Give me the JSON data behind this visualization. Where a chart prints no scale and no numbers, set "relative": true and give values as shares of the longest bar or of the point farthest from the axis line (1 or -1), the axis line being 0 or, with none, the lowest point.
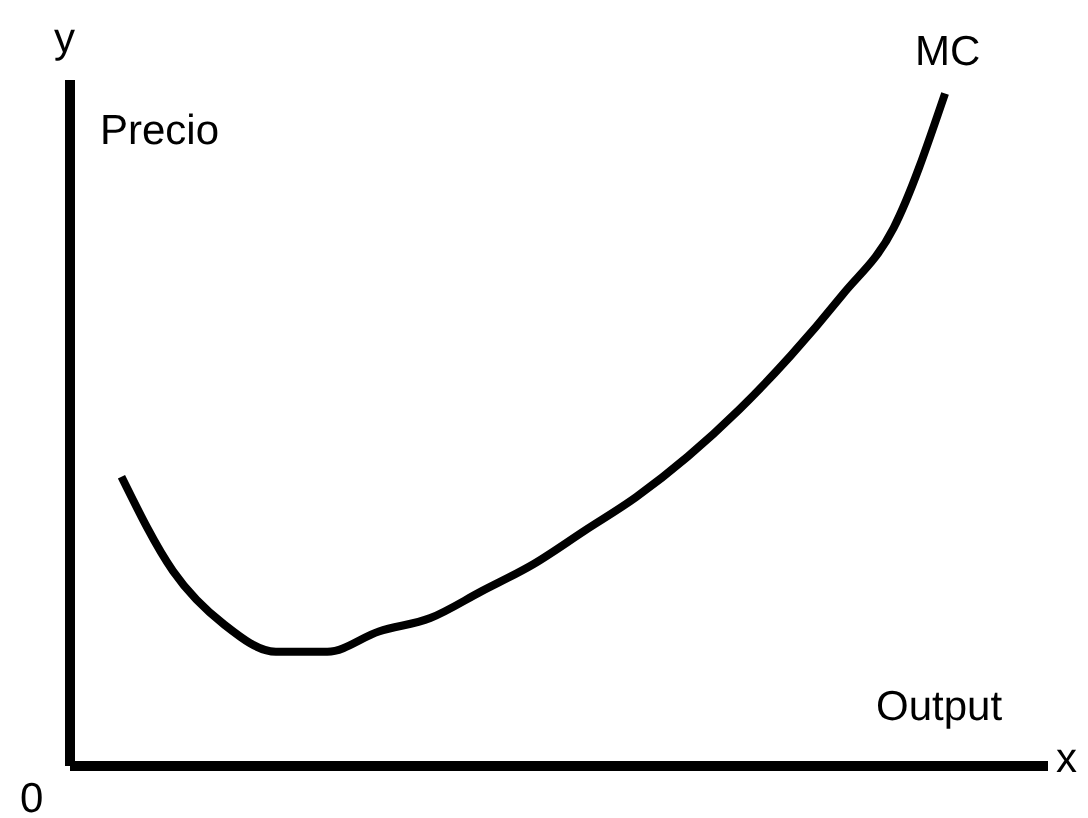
{
  "chart_data": {
    "type": "line",
    "relative": true,
    "xlabel": "Output",
    "ylabel": "Precio",
    "annotations": [
      "y",
      "x",
      "0"
    ],
    "categories": [
      null,
      null,
      null,
      null,
      null,
      null,
      null,
      null,
      null,
      null,
      null,
      null,
      null,
      null,
      null,
      null,
      null,
      null,
      null,
      null
    ],
    "series": [
      {
        "name": "MC",
        "color": "#000000",
        "values": [
          null,
          0.43,
          0.29,
          0.21,
          0.17,
          0.17,
          0.2,
          0.22,
          0.26,
          0.3,
          0.35,
          0.4,
          0.46,
          0.53,
          0.61,
          0.7,
          0.8,
          1.0,
          null,
          null
        ]
      }
    ],
    "grid": false,
    "legend": false,
    "marker": "none",
    "line_style": "solid"
  }
}
